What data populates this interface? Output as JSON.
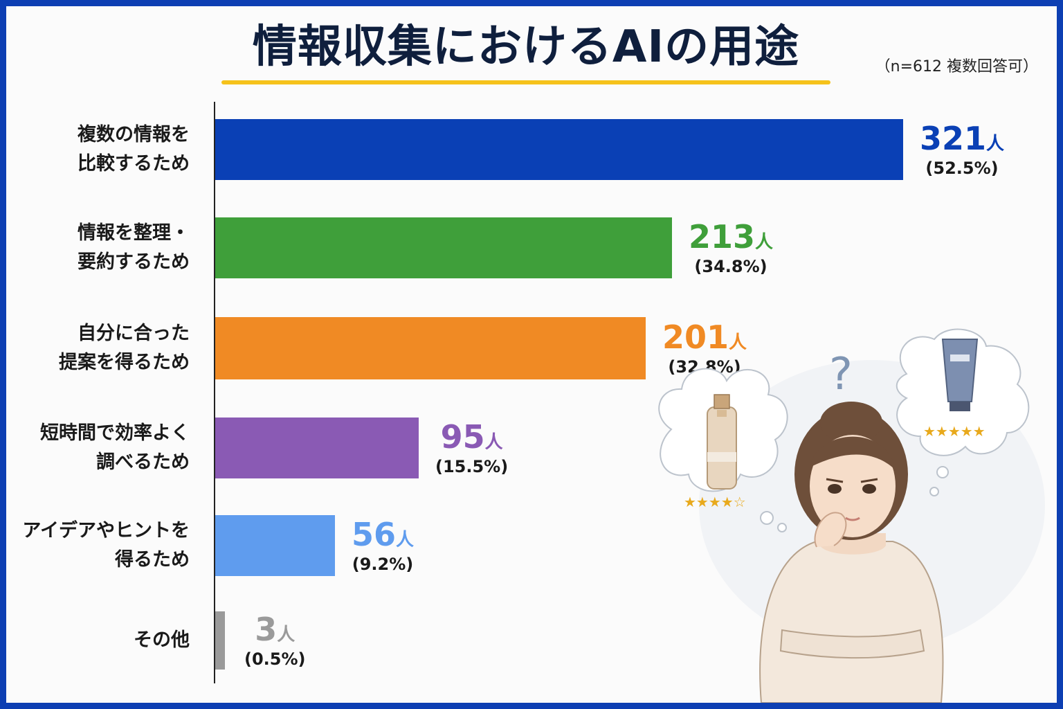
{
  "header": {
    "title": "情報収集におけるAIの用途",
    "note": "（n=612 複数回答可）"
  },
  "colors": {
    "frame": "#0d3fb3",
    "accent_underline": "#f5c21b"
  },
  "chart_data": {
    "type": "bar",
    "orientation": "horizontal",
    "title": "情報収集におけるAIの用途",
    "unit": "人",
    "categories": [
      "複数の情報を\n比較するため",
      "情報を整理・\n要約するため",
      "自分に合った\n提案を得るため",
      "短時間で効率よく\n調べるため",
      "アイデアやヒントを\n得るため",
      "その他"
    ],
    "values": [
      321,
      213,
      201,
      95,
      56,
      3
    ],
    "percent_labels": [
      "(52.5%)",
      "(34.8%)",
      "(32.8%)",
      "(15.5%)",
      "(9.2%)",
      "(0.5%)"
    ],
    "colors": [
      "#0a40b5",
      "#3f9f3a",
      "#f08a24",
      "#8a5ab4",
      "#5f9cee",
      "#9a9a9a"
    ],
    "xlim": [
      0,
      321
    ],
    "grid": false,
    "legend": "none"
  },
  "illustration": {
    "bottle_rating": "★★★★☆",
    "tube_rating": "★★★★★",
    "question_mark": "?"
  }
}
